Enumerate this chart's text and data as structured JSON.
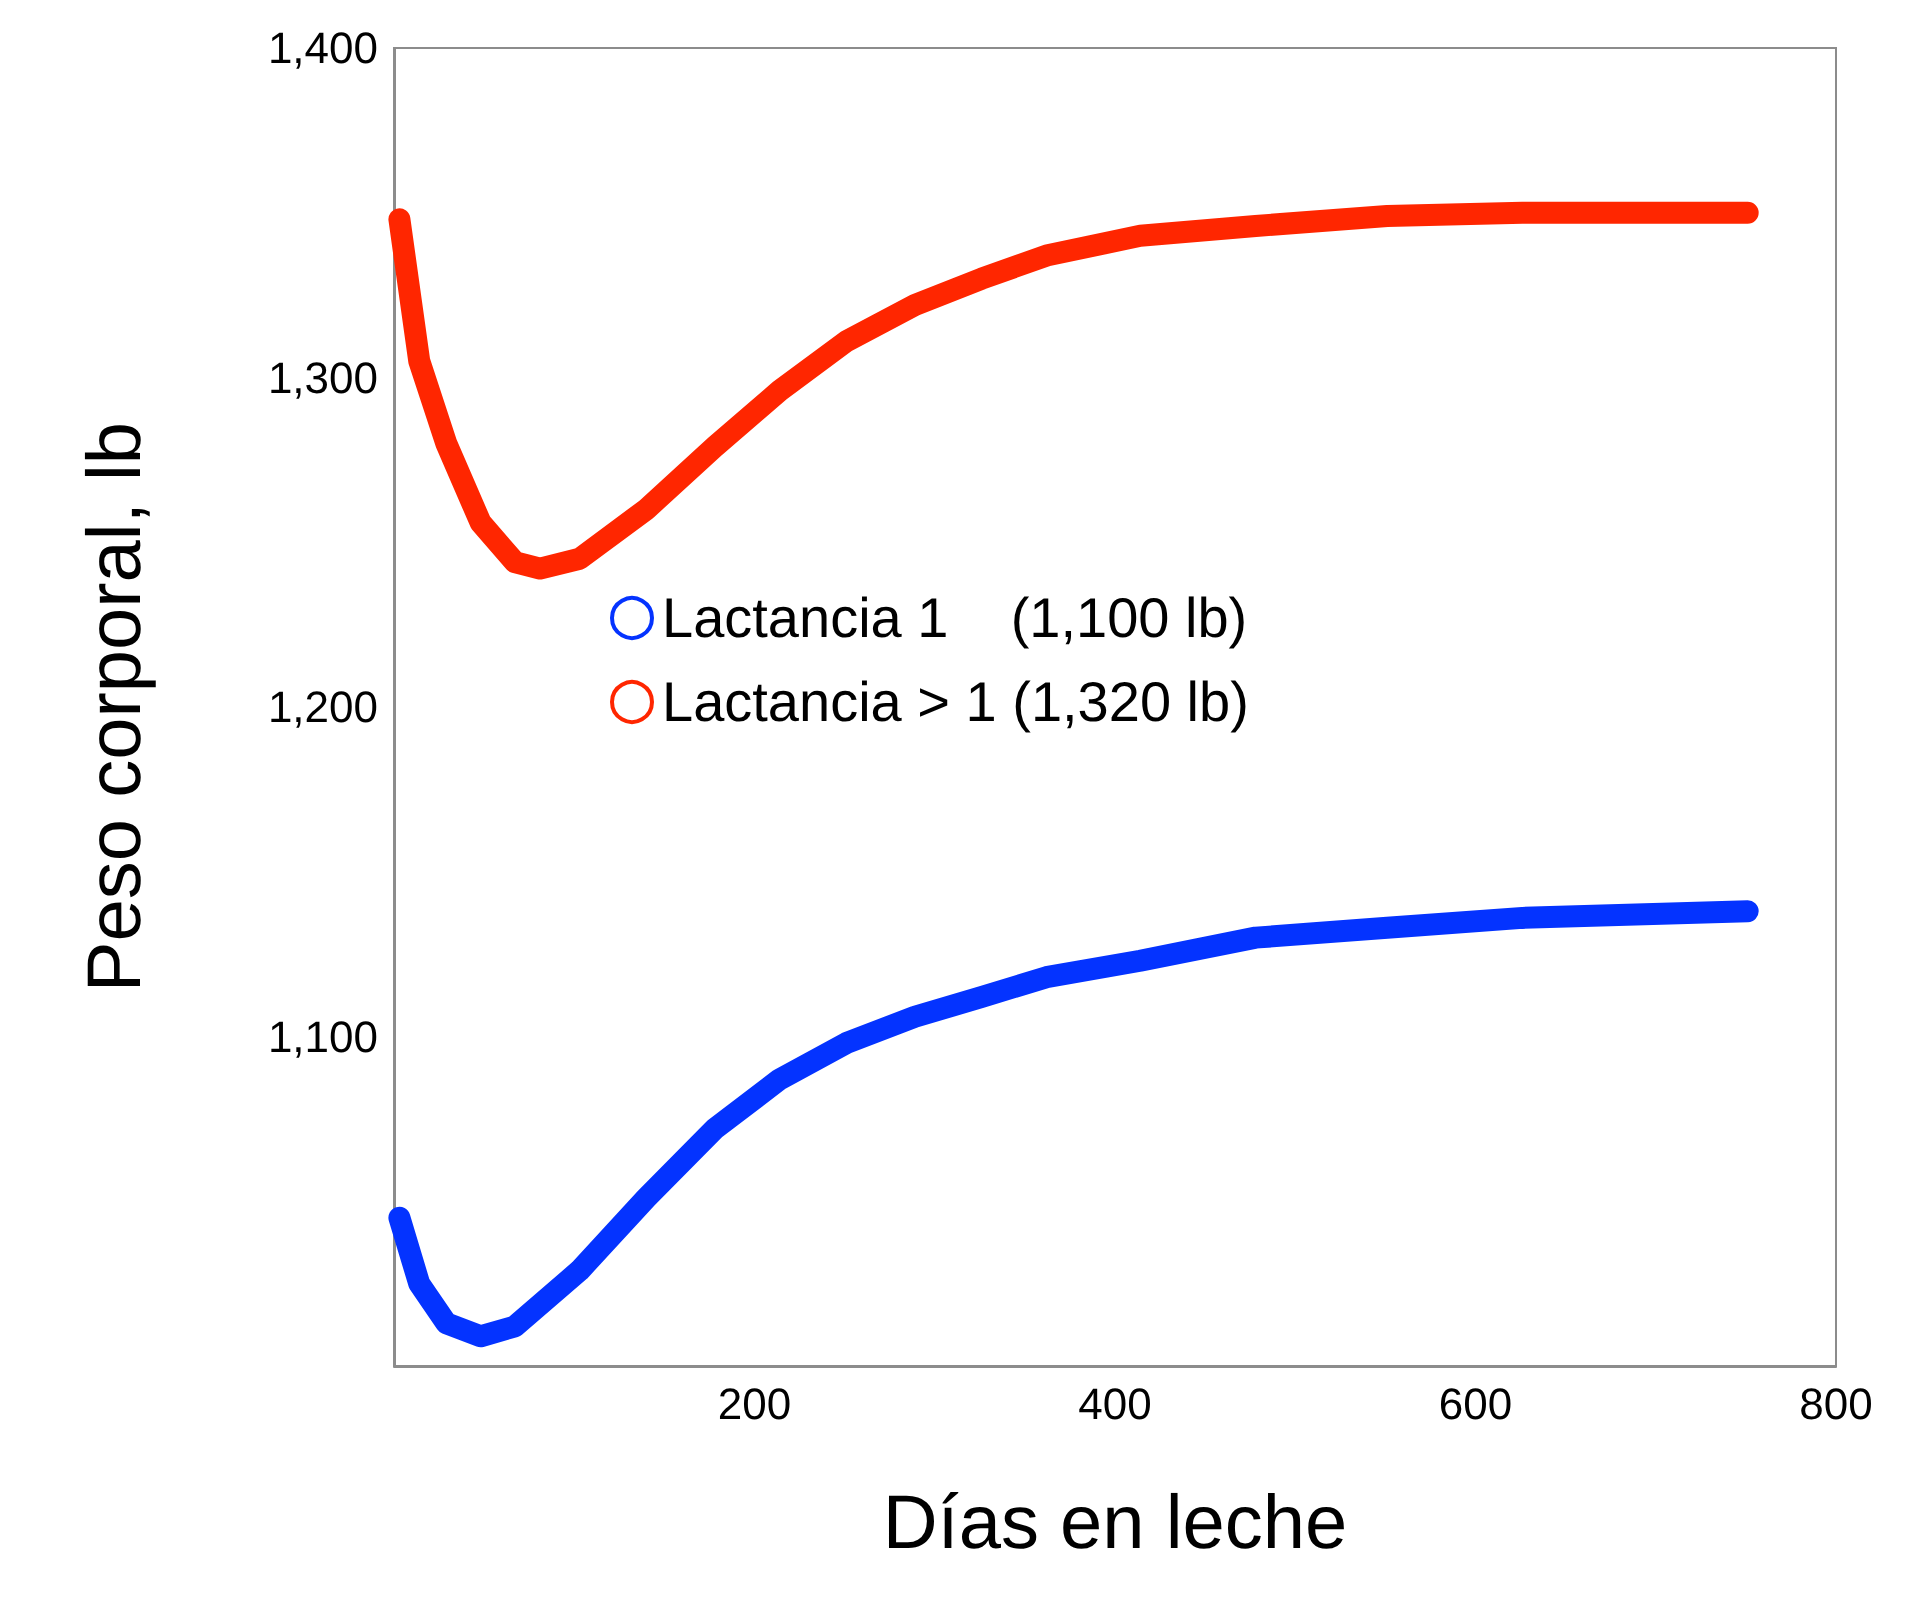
{
  "chart_data": {
    "type": "line",
    "xlabel": "Días en leche",
    "ylabel": "Peso corporal, lb",
    "xlim": [
      0,
      800
    ],
    "ylim": [
      1000,
      1400
    ],
    "xticks": [
      200,
      400,
      600,
      800
    ],
    "yticks": [
      {
        "value": 1100,
        "label": "1,100"
      },
      {
        "value": 1200,
        "label": "1,200"
      },
      {
        "value": 1300,
        "label": "1,300"
      },
      {
        "value": 1400,
        "label": "1,400"
      }
    ],
    "grid": false,
    "legend": "center",
    "series": [
      {
        "name": "Lactancia 1    (1,100 lb)",
        "color": "#0433ff",
        "x": [
          3,
          14,
          29,
          48,
          67,
          103,
          140,
          178,
          214,
          251,
          289,
          326,
          362,
          414,
          478,
          551,
          626,
          751
        ],
        "values": [
          1045,
          1025,
          1013,
          1009,
          1012,
          1029,
          1051,
          1072,
          1087,
          1098,
          1106,
          1112,
          1118,
          1123,
          1130,
          1133,
          1136,
          1138
        ]
      },
      {
        "name": "Lactancia > 1 (1,320 lb)",
        "color": "#ff2600",
        "x": [
          3,
          14,
          29,
          48,
          67,
          81,
          103,
          140,
          178,
          214,
          251,
          289,
          326,
          362,
          414,
          478,
          551,
          626,
          751
        ],
        "values": [
          1348,
          1305,
          1280,
          1256,
          1244,
          1242,
          1245,
          1260,
          1279,
          1296,
          1311,
          1322,
          1330,
          1337,
          1343,
          1346,
          1349,
          1350,
          1350
        ]
      }
    ]
  }
}
